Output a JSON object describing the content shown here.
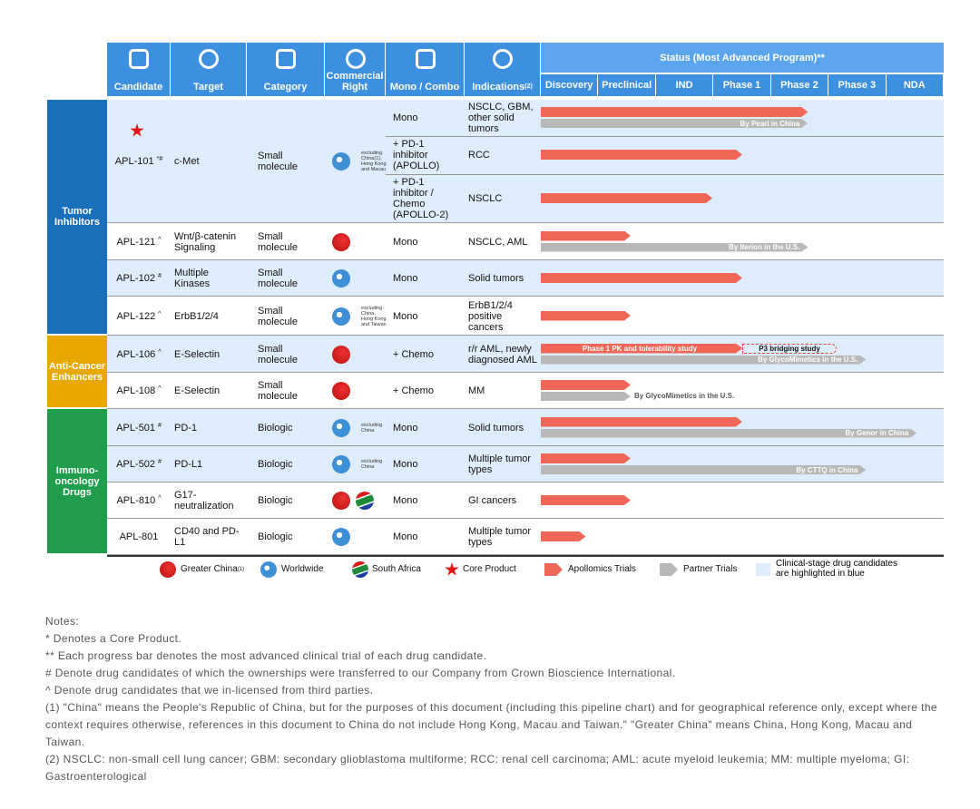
{
  "header": {
    "columns": [
      "Candidate",
      "Target",
      "Category",
      "Commercial Right",
      "Mono / Combo",
      "Indications"
    ],
    "indications_sup": "(2)",
    "status_title": "Status (Most Advanced Program)**",
    "phases": [
      "Discovery",
      "Preclinical",
      "IND",
      "Phase 1",
      "Phase 2",
      "Phase 3",
      "NDA"
    ]
  },
  "groups": [
    {
      "name": "Tumor Inhibitors",
      "color": "#1a6fba"
    },
    {
      "name": "Anti-Cancer Enhancers",
      "color": "#e8a800"
    },
    {
      "name": "Immuno-oncology Drugs",
      "color": "#1f9d4c"
    }
  ],
  "rows": [
    {
      "group": 0,
      "candidate": "APL-101",
      "mark": "*#",
      "core": true,
      "target": "c-Met",
      "category": "Small molecule",
      "rights": [
        "worldwide"
      ],
      "right_note": "excluding China(1), Hong Kong and Macau",
      "highlight": true,
      "arms": [
        {
          "combo": "Mono",
          "indication": "NSCLC, GBM, other solid tumors",
          "trial_end": 4.64,
          "partner_end": 4.64,
          "partner_label": "By Pearl in China"
        },
        {
          "combo": "+ PD-1 inhibitor (APOLLO)",
          "indication": "RCC",
          "trial_end": 3.5
        },
        {
          "combo": "+ PD-1 inhibitor / Chemo (APOLLO-2)",
          "indication": "NSCLC",
          "trial_end": 2.98
        }
      ]
    },
    {
      "group": 0,
      "candidate": "APL-121",
      "mark": "^",
      "target": "Wnt/β-catenin Signaling",
      "category": "Small molecule",
      "rights": [
        "greater_china"
      ],
      "highlight": false,
      "arms": [
        {
          "combo": "Mono",
          "indication": "NSCLC, AML",
          "trial_end": 1.56,
          "partner_end": 4.64,
          "partner_label": "By Iterion in the U.S."
        }
      ]
    },
    {
      "group": 0,
      "candidate": "APL-102",
      "mark": "#",
      "target": "Multiple Kinases",
      "category": "Small molecule",
      "rights": [
        "worldwide"
      ],
      "highlight": true,
      "arms": [
        {
          "combo": "Mono",
          "indication": "Solid tumors",
          "trial_end": 3.5
        }
      ]
    },
    {
      "group": 0,
      "candidate": "APL-122",
      "mark": "^",
      "target": "ErbB1/2/4",
      "category": "Small molecule",
      "rights": [
        "worldwide"
      ],
      "right_note": "excluding China, Hong Kong and Taiwan",
      "highlight": false,
      "arms": [
        {
          "combo": "Mono",
          "indication": "ErbB1/2/4 positive cancers",
          "trial_end": 1.56
        }
      ]
    },
    {
      "group": 1,
      "candidate": "APL-106",
      "mark": "^",
      "target": "E-Selectin",
      "category": "Small molecule",
      "rights": [
        "greater_china"
      ],
      "highlight": true,
      "arms": [
        {
          "combo": "+ Chemo",
          "indication": "r/r AML, newly diagnosed AML",
          "trial_end": 3.5,
          "trial_label": "Phase 1 PK and tolerability study",
          "extension_end": 5.14,
          "extension_label": "P3 bridging study",
          "partner_end": 5.65,
          "partner_label": "By GlycoMimetics in the U.S."
        }
      ]
    },
    {
      "group": 1,
      "candidate": "APL-108",
      "mark": "^",
      "target": "E-Selectin",
      "category": "Small molecule",
      "rights": [
        "greater_china"
      ],
      "highlight": false,
      "arms": [
        {
          "combo": "+ Chemo",
          "indication": "MM",
          "trial_end": 1.56,
          "partner_end": 1.56,
          "partner_label": "By GlycoMimetics in the U.S.",
          "partner_label_position": "outside"
        }
      ]
    },
    {
      "group": 2,
      "candidate": "APL-501",
      "mark": "#",
      "target": "PD-1",
      "category": "Biologic",
      "rights": [
        "worldwide"
      ],
      "right_note": "excluding China",
      "highlight": true,
      "arms": [
        {
          "combo": "Mono",
          "indication": "Solid tumors",
          "trial_end": 3.5,
          "partner_end": 6.53,
          "partner_label": "By Genor in China"
        }
      ]
    },
    {
      "group": 2,
      "candidate": "APL-502",
      "mark": "#",
      "target": "PD-L1",
      "category": "Biologic",
      "rights": [
        "worldwide"
      ],
      "right_note": "excluding China",
      "highlight": true,
      "arms": [
        {
          "combo": "Mono",
          "indication": "Multiple tumor types",
          "trial_end": 1.56,
          "partner_end": 5.65,
          "partner_label": "By CTTQ in China"
        }
      ]
    },
    {
      "group": 2,
      "candidate": "APL-810",
      "mark": "^",
      "target": "G17-neutralization",
      "category": "Biologic",
      "rights": [
        "greater_china",
        "south_africa"
      ],
      "highlight": false,
      "arms": [
        {
          "combo": "Mono",
          "indication": "GI cancers",
          "trial_end": 1.56
        }
      ]
    },
    {
      "group": 2,
      "candidate": "APL-801",
      "target": "CD40 and PD-L1",
      "category": "Biologic",
      "rights": [
        "worldwide"
      ],
      "highlight": false,
      "arms": [
        {
          "combo": "Mono",
          "indication": "Multiple tumor types",
          "trial_end": 0.78
        }
      ]
    }
  ],
  "legend": {
    "greater_china": "Greater China",
    "greater_china_sup": "(1)",
    "worldwide": "Worldwide",
    "south_africa": "South Africa",
    "core": "Core Product",
    "apollomics": "Apollomics Trials",
    "partner": "Partner Trials",
    "highlight": "Clinical-stage drug candidates are highlighted in blue"
  },
  "notes": [
    "Notes:",
    "*  Denotes a Core Product.",
    "**  Each progress bar denotes the most advanced clinical trial of each drug candidate.",
    "#  Denote drug candidates of which the ownerships were transferred to our Company from Crown Bioscience International.",
    "^  Denote drug candidates that we in-licensed from third parties.",
    "(1)    \"China\" means the People's Republic of China, but for the purposes of this document (including this pipeline chart) and for geographical reference only, except where the context requires otherwise, references in this document to China do not include Hong Kong, Macau and Taiwan.\" \"Greater China\" means China, Hong Kong, Macau and Taiwan.",
    "(2)    NSCLC: non-small cell lung cancer; GBM: secondary glioblastoma multiforme; RCC: renal cell carcinoma; AML: acute myeloid leukemia; MM: multiple myeloma; GI: Gastroenterological"
  ]
}
